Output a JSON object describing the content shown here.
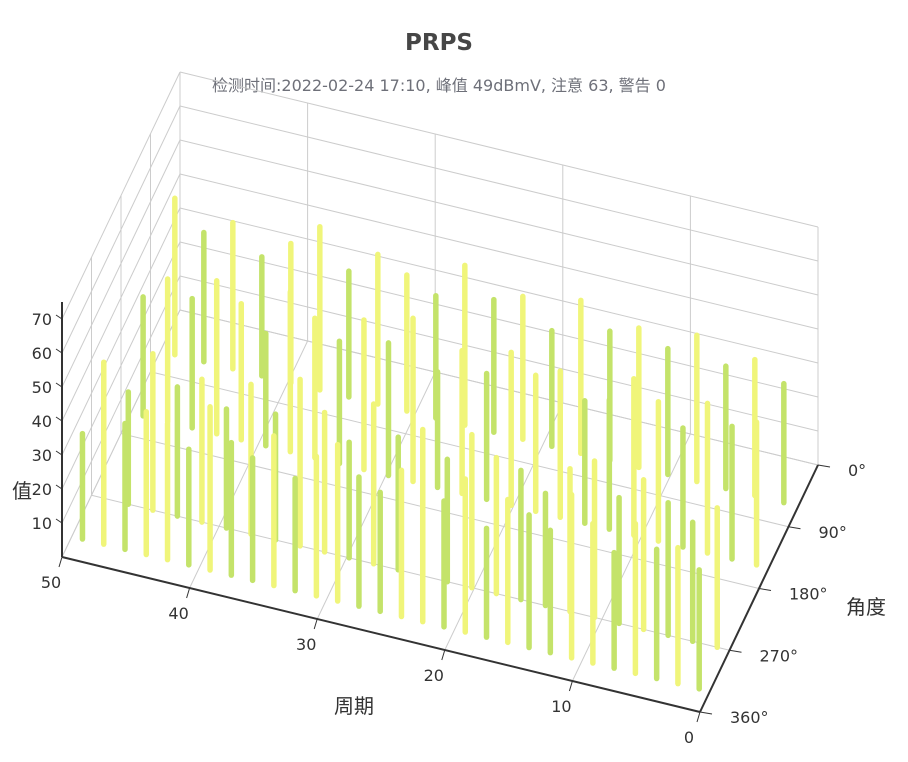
{
  "chart_data": {
    "type": "bar3d",
    "title": "PRPS",
    "subtitle": "检测时间:2022-02-24 17:10, 峰值 49dBmV, 注意 63, 警告 0",
    "axes": {
      "x": {
        "label": "周期",
        "ticks": [
          "0",
          "10",
          "20",
          "30",
          "40",
          "50"
        ],
        "range": [
          0,
          50
        ]
      },
      "y": {
        "label": "角度",
        "ticks": [
          "0°",
          "90°",
          "180°",
          "270°",
          "360°"
        ],
        "range": [
          0,
          360
        ]
      },
      "z": {
        "label": "值",
        "ticks": [
          "10",
          "20",
          "30",
          "40",
          "50",
          "60",
          "70"
        ],
        "range": [
          0,
          75
        ]
      }
    },
    "colors": {
      "low": "#c4e36a",
      "high": "#f0f57a",
      "grid": "#cccccc",
      "axis": "#333333"
    },
    "series": [
      {
        "phase": 330,
        "count": 30,
        "values": [
          31,
          47,
          37,
          42,
          40,
          34,
          48,
          39,
          36,
          44,
          33,
          41,
          46,
          38,
          35,
          43,
          40,
          37,
          45,
          32,
          42,
          39,
          36,
          48,
          41,
          34,
          44,
          38,
          40,
          35
        ]
      },
      {
        "phase": 270,
        "count": 26,
        "values": [
          40,
          33,
          46,
          38,
          42,
          35,
          44,
          37,
          49,
          41,
          34,
          47,
          39,
          43,
          36,
          45,
          40,
          38,
          33,
          42,
          46,
          37,
          44,
          39,
          35,
          41
        ]
      },
      {
        "phase": 150,
        "count": 26,
        "values": [
          35,
          42,
          38,
          45,
          40,
          33,
          47,
          41,
          36,
          44,
          39,
          48,
          34,
          42,
          37,
          45,
          40,
          43,
          36,
          38,
          46,
          41,
          35,
          44,
          39,
          42
        ]
      },
      {
        "phase": 60,
        "count": 22,
        "values": [
          46,
          38,
          43,
          35,
          41,
          48,
          37,
          44,
          40,
          36,
          47,
          39,
          42,
          34,
          45,
          38,
          41,
          37,
          43,
          36,
          40,
          35
        ]
      }
    ]
  }
}
